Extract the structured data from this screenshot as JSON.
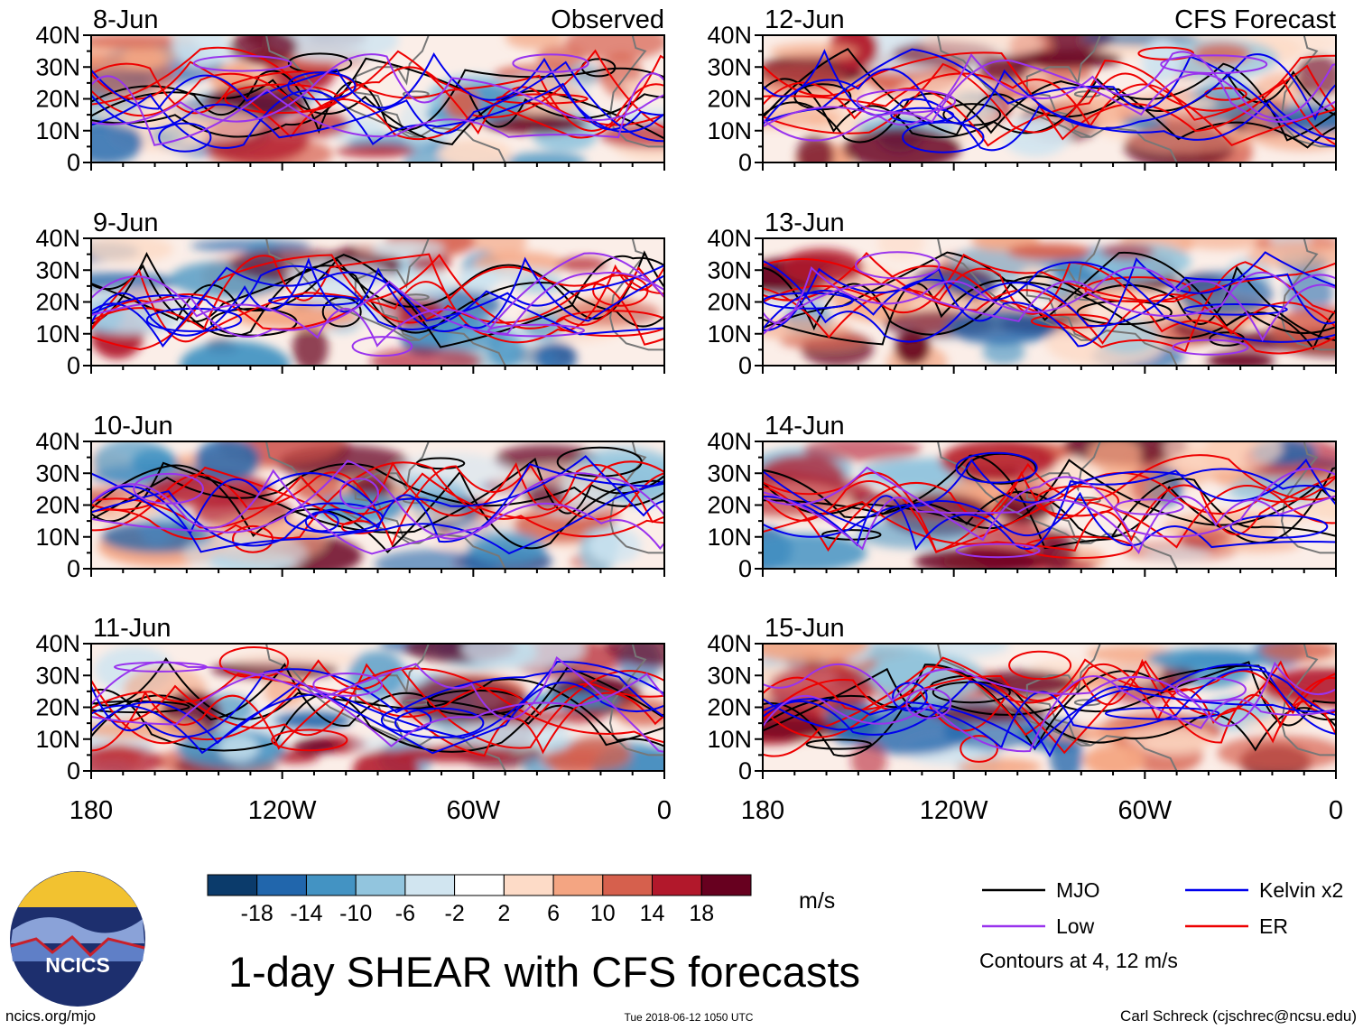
{
  "chart_data": {
    "type": "heatmap",
    "title": "1-day SHEAR with CFS forecasts",
    "units": "m/s",
    "xlabel": "",
    "ylabel": "",
    "x_ticks": [
      "180",
      "120W",
      "60W",
      "0"
    ],
    "y_ticks": [
      "40N",
      "30N",
      "20N",
      "10N",
      "0"
    ],
    "xlim_deg_east": [
      -180,
      0
    ],
    "ylim_deg_north": [
      0,
      40
    ],
    "left_column_label": "Observed",
    "right_column_label": "CFS Forecast",
    "panels": [
      {
        "date": "8-Jun",
        "kind": "observed"
      },
      {
        "date": "9-Jun",
        "kind": "observed"
      },
      {
        "date": "10-Jun",
        "kind": "observed"
      },
      {
        "date": "11-Jun",
        "kind": "observed"
      },
      {
        "date": "12-Jun",
        "kind": "forecast"
      },
      {
        "date": "13-Jun",
        "kind": "forecast"
      },
      {
        "date": "14-Jun",
        "kind": "forecast"
      },
      {
        "date": "15-Jun",
        "kind": "forecast"
      }
    ],
    "colorbar": {
      "labels": [
        "-18",
        "-14",
        "-10",
        "-6",
        "-2",
        "2",
        "6",
        "10",
        "14",
        "18"
      ],
      "bin_values": [
        -20,
        -16,
        -12,
        -8,
        -4,
        0,
        4,
        8,
        12,
        16,
        20
      ],
      "colors": [
        "#0b3b6b",
        "#2166ac",
        "#4393c3",
        "#92c5de",
        "#d1e5f0",
        "#ffffff",
        "#fddbc7",
        "#f4a582",
        "#d6604d",
        "#b2182b",
        "#67001f"
      ]
    },
    "legend": [
      {
        "name": "MJO",
        "color": "#000000"
      },
      {
        "name": "Kelvin x2",
        "color": "#0000ee"
      },
      {
        "name": "Low",
        "color": "#9933ee"
      },
      {
        "name": "ER",
        "color": "#ee0000"
      }
    ],
    "contour_levels_note": "Contours at 4, 12 m/s"
  },
  "footer": {
    "logo_text": "NCICS",
    "website": "ncics.org/mjo",
    "timestamp": "Tue 2018-06-12 1050 UTC",
    "credit": "Carl Schreck (cjschrec@ncsu.edu)"
  }
}
